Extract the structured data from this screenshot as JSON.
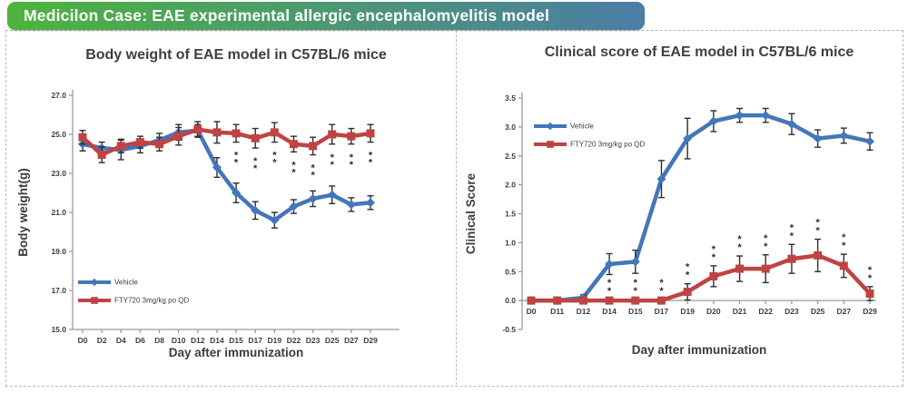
{
  "header": {
    "title": "Medicilon Case: EAE experimental allergic encephalomyelitis model",
    "gradient_from": "#4db33c",
    "gradient_to": "#4b7da6"
  },
  "colors": {
    "vehicle": "#4476b9",
    "fty720": "#bf4343",
    "error_bar": "#2e2e2e",
    "axis": "#9a9a9a"
  },
  "chart_data": [
    {
      "type": "line",
      "title": "Body weight of EAE model in C57BL/6 mice",
      "xlabel": "Day after immunization",
      "ylabel": "Body weight(g)",
      "ylim": [
        15.0,
        27.0
      ],
      "ytick_step": 2.0,
      "xaxis_at": 15.0,
      "grid": false,
      "legend_position": "bottom-left",
      "categories": [
        "D0",
        "D2",
        "D4",
        "D6",
        "D8",
        "D10",
        "D12",
        "D14",
        "D15",
        "D17",
        "D19",
        "D22",
        "D23",
        "D25",
        "D27",
        "D29"
      ],
      "series": [
        {
          "name": "Vehicle",
          "color": "#4476b9",
          "marker": "diamond",
          "values": [
            24.5,
            24.3,
            24.2,
            24.4,
            24.7,
            25.1,
            25.2,
            23.3,
            22.0,
            21.1,
            20.6,
            21.3,
            21.7,
            21.9,
            21.4,
            21.5
          ],
          "errors": [
            0.35,
            0.3,
            0.5,
            0.35,
            0.35,
            0.4,
            0.3,
            0.5,
            0.5,
            0.45,
            0.4,
            0.35,
            0.4,
            0.45,
            0.35,
            0.35
          ]
        },
        {
          "name": "FTY720 3mg/kg po QD",
          "color": "#bf4343",
          "marker": "square",
          "values": [
            24.85,
            23.95,
            24.4,
            24.6,
            24.5,
            24.9,
            25.25,
            25.1,
            25.05,
            24.8,
            25.1,
            24.5,
            24.4,
            25.0,
            24.9,
            25.05
          ],
          "errors": [
            0.35,
            0.4,
            0.35,
            0.3,
            0.35,
            0.45,
            0.4,
            0.55,
            0.45,
            0.5,
            0.5,
            0.4,
            0.45,
            0.5,
            0.4,
            0.45
          ]
        }
      ],
      "significance": {
        "series_index": 1,
        "text": "**",
        "placement": "below",
        "indices": [
          8,
          9,
          10,
          11,
          12,
          13,
          14,
          15
        ]
      }
    },
    {
      "type": "line",
      "title": "Clinical score of EAE model in C57BL/6 mice",
      "xlabel": "Day after immunization",
      "ylabel": "Clinical Score",
      "ylim": [
        -0.5,
        3.5
      ],
      "ytick_step": 0.5,
      "xaxis_at": 0.0,
      "grid": false,
      "legend_position": "top-left",
      "categories": [
        "D0",
        "D11",
        "D12",
        "D14",
        "D15",
        "D17",
        "D19",
        "D20",
        "D21",
        "D22",
        "D23",
        "D25",
        "D27",
        "D29"
      ],
      "series": [
        {
          "name": "Vehicle",
          "color": "#4476b9",
          "marker": "diamond",
          "values": [
            0.0,
            0.0,
            0.05,
            0.63,
            0.67,
            2.1,
            2.8,
            3.1,
            3.2,
            3.2,
            3.05,
            2.8,
            2.85,
            2.75
          ],
          "errors": [
            0.0,
            0.0,
            0.05,
            0.18,
            0.2,
            0.32,
            0.35,
            0.18,
            0.12,
            0.12,
            0.18,
            0.15,
            0.13,
            0.15
          ]
        },
        {
          "name": "FTY720 3mg/kg po QD",
          "color": "#bf4343",
          "marker": "square",
          "values": [
            0.0,
            0.0,
            0.0,
            0.0,
            0.0,
            0.0,
            0.15,
            0.42,
            0.55,
            0.55,
            0.72,
            0.78,
            0.6,
            0.12
          ],
          "errors": [
            0.0,
            0.0,
            0.0,
            0.02,
            0.02,
            0.02,
            0.14,
            0.18,
            0.22,
            0.24,
            0.25,
            0.28,
            0.2,
            0.12
          ]
        }
      ],
      "significance": {
        "series_index": 1,
        "text": "**",
        "placement": "above",
        "indices": [
          3,
          4,
          5,
          6,
          7,
          8,
          9,
          10,
          11,
          12,
          13
        ]
      }
    }
  ]
}
